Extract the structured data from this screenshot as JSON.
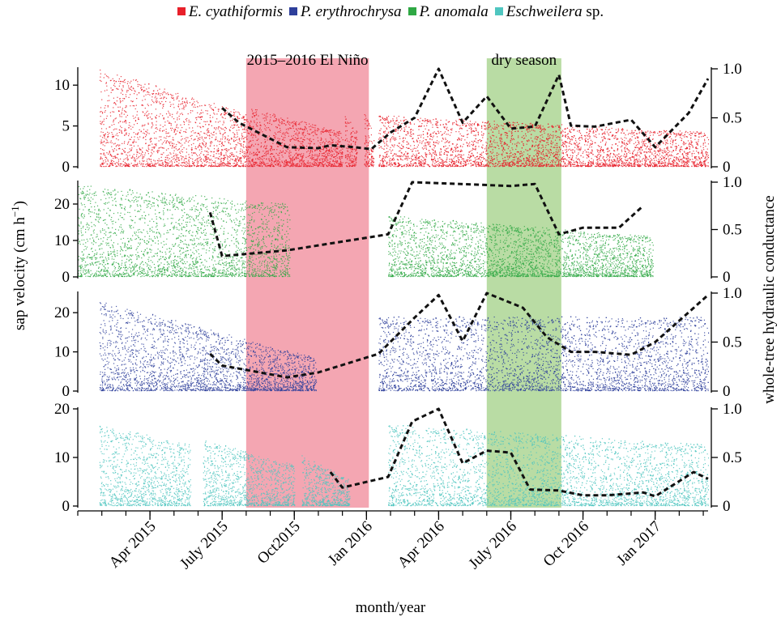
{
  "legend": [
    {
      "name_italic": "E. cyathiformis",
      "name_rest": "",
      "color": "#e8202a"
    },
    {
      "name_italic": "P. erythrochrysa",
      "name_rest": "",
      "color": "#2e3f9b"
    },
    {
      "name_italic": "P. anomala",
      "name_rest": "",
      "color": "#2fa844"
    },
    {
      "name_italic": "Eschweilera",
      "name_rest": " sp.",
      "color": "#4fc6c0"
    }
  ],
  "chart_data": {
    "type": "scatter",
    "xlabel": "month/year",
    "ylabel_left": "sap velocity (cm h",
    "ylabel_left_sup": "−1",
    "ylabel_left_tail": ")",
    "ylabel_right": "whole-tree hydraulic conductance",
    "x_ticks": [
      "Apr 2015",
      "July 2015",
      "Oct2015",
      "Jan 2016",
      "Apr 2016",
      "July  2016",
      "Oct  2016",
      "Jan 2017"
    ],
    "x_range": [
      "2015-01",
      "2017-03"
    ],
    "right_ylim": [
      0,
      1.0
    ],
    "right_ticks": [
      "0",
      "0.5",
      "1.0"
    ],
    "shaded_regions": [
      {
        "label": "2015–2016 El Niño",
        "start": "2015-08",
        "end": "2016-01",
        "color": "#f4a6b2"
      },
      {
        "label": "dry season",
        "start": "2016-06",
        "end": "2016-09",
        "color": "#b9dca4"
      }
    ],
    "panels": [
      {
        "species": "E. cyathiformis",
        "color": "#e8202a",
        "left_ylim": [
          0,
          12
        ],
        "left_ticks": [
          "0",
          "5",
          "10"
        ],
        "sap_segments": [
          [
            0.9,
            7.2,
            11.5,
            6.0
          ],
          [
            7.2,
            11.0,
            6.8,
            4.0
          ],
          [
            11.1,
            11.6,
            6.5,
            4.0
          ],
          [
            11.9,
            12.3,
            6.5,
            4.0
          ],
          [
            12.5,
            26.2,
            6.0,
            4.0
          ]
        ],
        "conductance": [
          [
            6.0,
            0.6
          ],
          [
            6.7,
            0.45
          ],
          [
            8.7,
            0.2
          ],
          [
            10.0,
            0.19
          ],
          [
            10.5,
            0.22
          ],
          [
            11.5,
            0.2
          ],
          [
            12.2,
            0.18
          ],
          [
            13.0,
            0.35
          ],
          [
            14.0,
            0.5
          ],
          [
            15.0,
            1.0
          ],
          [
            16.0,
            0.45
          ],
          [
            17.0,
            0.72
          ],
          [
            18.0,
            0.39
          ],
          [
            19.0,
            0.41
          ],
          [
            20.0,
            0.94
          ],
          [
            20.5,
            0.42
          ],
          [
            21.5,
            0.41
          ],
          [
            23.0,
            0.48
          ],
          [
            24.0,
            0.2
          ],
          [
            25.4,
            0.55
          ],
          [
            26.2,
            0.9
          ]
        ]
      },
      {
        "species": "P. anomala",
        "color": "#2fa844",
        "left_ylim": [
          0,
          26
        ],
        "left_ticks": [
          "0",
          "10",
          "20"
        ],
        "sap_segments": [
          [
            0.0,
            8.8,
            24.0,
            19.0
          ],
          [
            12.9,
            23.9,
            16.0,
            10.5
          ]
        ],
        "conductance": [
          [
            5.5,
            0.68
          ],
          [
            6.0,
            0.22
          ],
          [
            8.7,
            0.28
          ],
          [
            12.9,
            0.45
          ],
          [
            13.9,
            1.0
          ],
          [
            15.0,
            0.99
          ],
          [
            18.0,
            0.96
          ],
          [
            19.0,
            0.98
          ],
          [
            20.0,
            0.45
          ],
          [
            21.0,
            0.52
          ],
          [
            22.5,
            0.52
          ],
          [
            23.5,
            0.75
          ]
        ]
      },
      {
        "species": "P. erythrochrysa",
        "color": "#2e3f9b",
        "left_ylim": [
          0,
          25
        ],
        "left_ticks": [
          "0",
          "10",
          "20"
        ],
        "sap_segments": [
          [
            0.9,
            9.9,
            22.0,
            8.0
          ],
          [
            12.5,
            26.2,
            18.0,
            18.0
          ]
        ],
        "conductance": [
          [
            5.5,
            0.38
          ],
          [
            6.0,
            0.26
          ],
          [
            8.7,
            0.14
          ],
          [
            10.0,
            0.19
          ],
          [
            12.5,
            0.38
          ],
          [
            14.0,
            0.75
          ],
          [
            15.0,
            0.98
          ],
          [
            16.0,
            0.51
          ],
          [
            17.0,
            1.0
          ],
          [
            18.5,
            0.85
          ],
          [
            19.5,
            0.55
          ],
          [
            20.5,
            0.4
          ],
          [
            21.5,
            0.4
          ],
          [
            23.0,
            0.37
          ],
          [
            24.0,
            0.5
          ],
          [
            26.2,
            0.98
          ]
        ]
      },
      {
        "species": "Eschweilera sp.",
        "color": "#4fc6c0",
        "left_ylim": [
          0,
          20
        ],
        "left_ticks": [
          "0",
          "10",
          "20"
        ],
        "sap_segments": [
          [
            0.9,
            4.7,
            16.0,
            12.0
          ],
          [
            5.2,
            9.0,
            13.0,
            8.0
          ],
          [
            9.3,
            11.3,
            10.0,
            5.0
          ],
          [
            12.9,
            26.2,
            16.0,
            12.0
          ]
        ],
        "conductance": [
          [
            10.5,
            0.35
          ],
          [
            11.0,
            0.19
          ],
          [
            12.9,
            0.3
          ],
          [
            13.9,
            0.87
          ],
          [
            15.0,
            1.0
          ],
          [
            16.0,
            0.44
          ],
          [
            17.0,
            0.57
          ],
          [
            18.0,
            0.55
          ],
          [
            18.8,
            0.17
          ],
          [
            20.0,
            0.16
          ],
          [
            21.0,
            0.11
          ],
          [
            22.0,
            0.11
          ],
          [
            23.5,
            0.14
          ],
          [
            24.0,
            0.1
          ],
          [
            25.6,
            0.35
          ],
          [
            26.2,
            0.28
          ]
        ]
      }
    ]
  }
}
